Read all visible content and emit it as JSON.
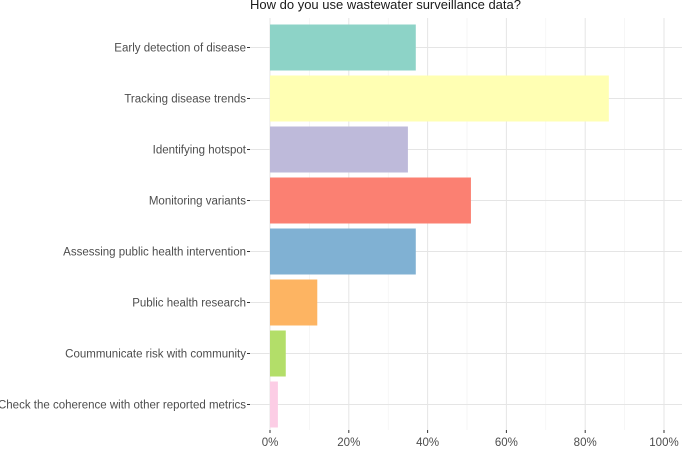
{
  "chart_data": {
    "type": "bar",
    "orientation": "horizontal",
    "title": "How do you use wastewater surveillance data?",
    "xlabel": "",
    "ylabel": "",
    "xlim": [
      0,
      100
    ],
    "x_ticks": [
      0,
      20,
      40,
      60,
      80,
      100
    ],
    "x_tick_labels": [
      "0%",
      "20%",
      "40%",
      "60%",
      "80%",
      "100%"
    ],
    "grid": true,
    "legend": "none",
    "categories": [
      "Early detection of disease",
      "Tracking disease trends",
      "Identifying hotspot",
      "Monitoring variants",
      "Assessing public health intervention",
      "Public health research",
      "Coummunicate risk with community",
      "Check the coherence with other reported metrics"
    ],
    "values": [
      37,
      86,
      35,
      51,
      37,
      12,
      4,
      2
    ],
    "colors": [
      "#8dd3c7",
      "#ffffb3",
      "#bebada",
      "#fb8072",
      "#80b1d3",
      "#fdb462",
      "#b3de69",
      "#fccde5"
    ]
  }
}
